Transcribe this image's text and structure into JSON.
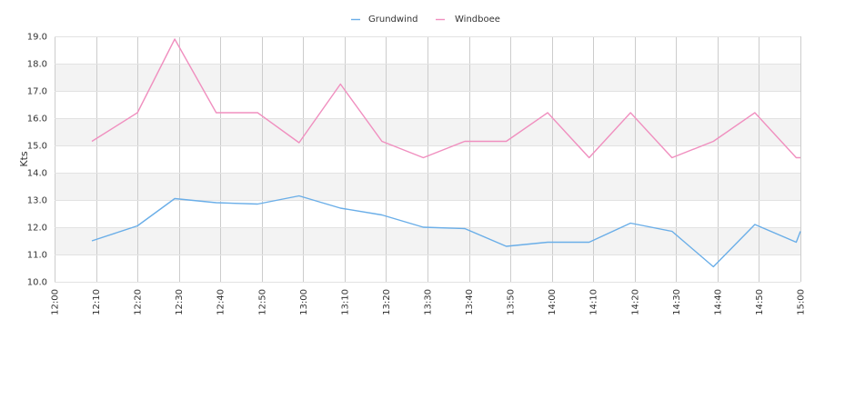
{
  "chart_data": {
    "type": "line",
    "title": "",
    "xlabel": "",
    "ylabel": "Kts",
    "ylim": [
      10.0,
      19.0
    ],
    "yticks": [
      "10.0",
      "11.0",
      "12.0",
      "13.0",
      "14.0",
      "15.0",
      "16.0",
      "17.0",
      "18.0",
      "19.0"
    ],
    "xlim": [
      "12:00",
      "15:00"
    ],
    "xticks": [
      "12:00",
      "12:10",
      "12:20",
      "12:30",
      "12:40",
      "12:50",
      "13:00",
      "13:10",
      "13:20",
      "13:30",
      "13:40",
      "13:50",
      "14:00",
      "14:10",
      "14:20",
      "14:30",
      "14:40",
      "14:50",
      "15:00"
    ],
    "grid": true,
    "legend": "top-center",
    "series": [
      {
        "name": "Grundwind",
        "color": "#6aaee8",
        "x": [
          "12:09",
          "12:20",
          "12:29",
          "12:39",
          "12:49",
          "12:59",
          "13:09",
          "13:19",
          "13:29",
          "13:39",
          "13:49",
          "13:59",
          "14:09",
          "14:19",
          "14:29",
          "14:39",
          "14:49",
          "14:59",
          "15:00"
        ],
        "y": [
          11.5,
          12.05,
          13.05,
          12.9,
          12.85,
          13.15,
          12.7,
          12.45,
          12.0,
          11.95,
          11.3,
          11.45,
          11.45,
          12.15,
          11.85,
          10.55,
          12.1,
          11.45,
          11.85
        ]
      },
      {
        "name": "Windboee",
        "color": "#f08fbf",
        "x": [
          "12:09",
          "12:20",
          "12:29",
          "12:39",
          "12:49",
          "12:59",
          "13:09",
          "13:19",
          "13:29",
          "13:39",
          "13:49",
          "13:59",
          "14:09",
          "14:19",
          "14:29",
          "14:39",
          "14:49",
          "14:59",
          "15:00"
        ],
        "y": [
          15.15,
          16.2,
          18.9,
          16.2,
          16.2,
          15.1,
          17.25,
          15.15,
          14.55,
          15.15,
          15.15,
          16.2,
          14.55,
          16.2,
          14.55,
          15.15,
          16.2,
          14.55,
          14.55
        ]
      }
    ]
  }
}
